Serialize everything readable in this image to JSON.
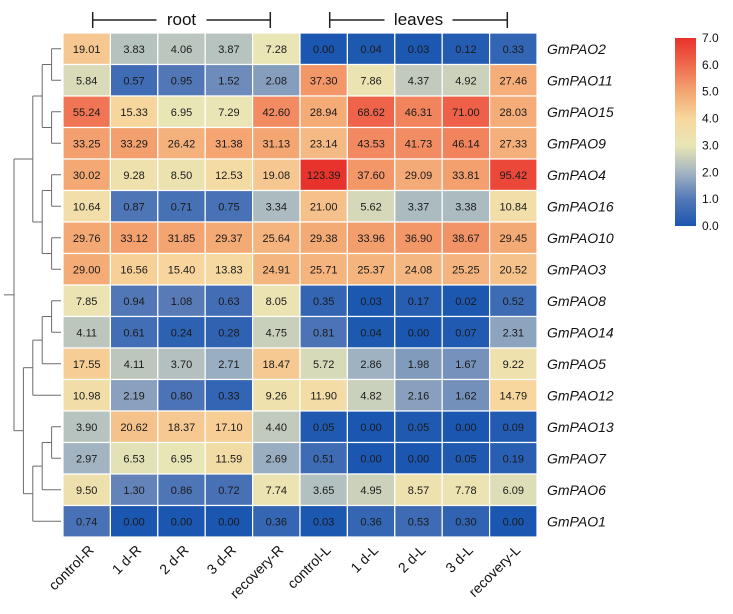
{
  "chart_data": {
    "type": "heatmap",
    "groups": [
      {
        "label": "root",
        "columns": [
          0,
          4
        ]
      },
      {
        "label": "leaves",
        "columns": [
          5,
          9
        ]
      }
    ],
    "columns": [
      "control-R",
      "1 d-R",
      "2 d-R",
      "3 d-R",
      "recovery-R",
      "control-L",
      "1 d-L",
      "2 d-L",
      "3 d-L",
      "recovery-L"
    ],
    "rows": [
      "GmPAO2",
      "GmPAO11",
      "GmPAO15",
      "GmPAO9",
      "GmPAO4",
      "GmPAO16",
      "GmPAO10",
      "GmPAO3",
      "GmPAO8",
      "GmPAO14",
      "GmPAO5",
      "GmPAO12",
      "GmPAO13",
      "GmPAO7",
      "GmPAO6",
      "GmPAO1"
    ],
    "values": [
      [
        "19.01",
        "3.83",
        "4.06",
        "3.87",
        "7.28",
        "0.00",
        "0.04",
        "0.03",
        "0.12",
        "0.33"
      ],
      [
        "5.84",
        "0.57",
        "0.95",
        "1.52",
        "2.08",
        "37.30",
        "7.86",
        "4.37",
        "4.92",
        "27.46"
      ],
      [
        "55.24",
        "15.33",
        "6.95",
        "7.29",
        "42.60",
        "28.94",
        "68.62",
        "46.31",
        "71.00",
        "28.03"
      ],
      [
        "33.25",
        "33.29",
        "26.42",
        "31.38",
        "31.13",
        "23.14",
        "43.53",
        "41.73",
        "46.14",
        "27.33"
      ],
      [
        "30.02",
        "9.28",
        "8.50",
        "12.53",
        "19.08",
        "123.39",
        "37.60",
        "29.09",
        "33.81",
        "95.42"
      ],
      [
        "10.64",
        "0.87",
        "0.71",
        "0.75",
        "3.34",
        "21.00",
        "5.62",
        "3.37",
        "3.38",
        "10.84"
      ],
      [
        "29.76",
        "33.12",
        "31.85",
        "29.37",
        "25.64",
        "29.38",
        "33.96",
        "36.90",
        "38.67",
        "29.45"
      ],
      [
        "29.00",
        "16.56",
        "15.40",
        "13.83",
        "24.91",
        "25.71",
        "25.37",
        "24.08",
        "25.25",
        "20.52"
      ],
      [
        "7.85",
        "0.94",
        "1.08",
        "0.63",
        "8.05",
        "0.35",
        "0.03",
        "0.17",
        "0.02",
        "0.52"
      ],
      [
        "4.11",
        "0.61",
        "0.24",
        "0.28",
        "4.75",
        "0.81",
        "0.04",
        "0.00",
        "0.07",
        "2.31"
      ],
      [
        "17.55",
        "4.11",
        "3.70",
        "2.71",
        "18.47",
        "5.72",
        "2.86",
        "1.98",
        "1.67",
        "9.22"
      ],
      [
        "10.98",
        "2.19",
        "0.80",
        "0.33",
        "9.26",
        "11.90",
        "4.82",
        "2.16",
        "1.62",
        "14.79"
      ],
      [
        "3.90",
        "20.62",
        "18.37",
        "17.10",
        "4.40",
        "0.05",
        "0.00",
        "0.05",
        "0.00",
        "0.09"
      ],
      [
        "2.97",
        "6.53",
        "6.95",
        "11.59",
        "2.69",
        "0.51",
        "0.00",
        "0.00",
        "0.05",
        "0.19"
      ],
      [
        "9.50",
        "1.30",
        "0.86",
        "0.72",
        "7.74",
        "3.65",
        "4.95",
        "8.57",
        "7.78",
        "6.09"
      ],
      [
        "0.74",
        "0.00",
        "0.00",
        "0.00",
        "0.36",
        "0.03",
        "0.36",
        "0.53",
        "0.30",
        "0.00"
      ]
    ],
    "color_scale": {
      "transform": "log2(value + 1)",
      "range": [
        0,
        7
      ],
      "ticks": [
        "7.0",
        "6.0",
        "5.0",
        "4.0",
        "3.0",
        "2.0",
        "1.0",
        "0.0"
      ],
      "stops": [
        {
          "v": 0.0,
          "color": "#1b57b0"
        },
        {
          "v": 1.0,
          "color": "#5478b7"
        },
        {
          "v": 2.0,
          "color": "#a3b5c2"
        },
        {
          "v": 3.0,
          "color": "#e9e6b5"
        },
        {
          "v": 4.0,
          "color": "#f7d79e"
        },
        {
          "v": 5.0,
          "color": "#f4a672"
        },
        {
          "v": 6.0,
          "color": "#ef6a4d"
        },
        {
          "v": 7.0,
          "color": "#e8312b"
        }
      ]
    },
    "dendrogram": [
      [
        0,
        1
      ],
      [
        2,
        3
      ],
      [
        "c0",
        "c1"
      ],
      [
        4,
        5
      ],
      [
        6,
        7
      ],
      [
        "c3",
        "c4"
      ],
      [
        "c2",
        "c5"
      ],
      [
        8,
        9
      ],
      [
        "c7",
        10
      ],
      [
        "c8",
        11
      ],
      [
        12,
        13
      ],
      [
        "c10",
        14
      ],
      [
        "c11",
        15
      ],
      [
        "c9",
        "c12"
      ],
      [
        "c6",
        "c13"
      ]
    ]
  }
}
